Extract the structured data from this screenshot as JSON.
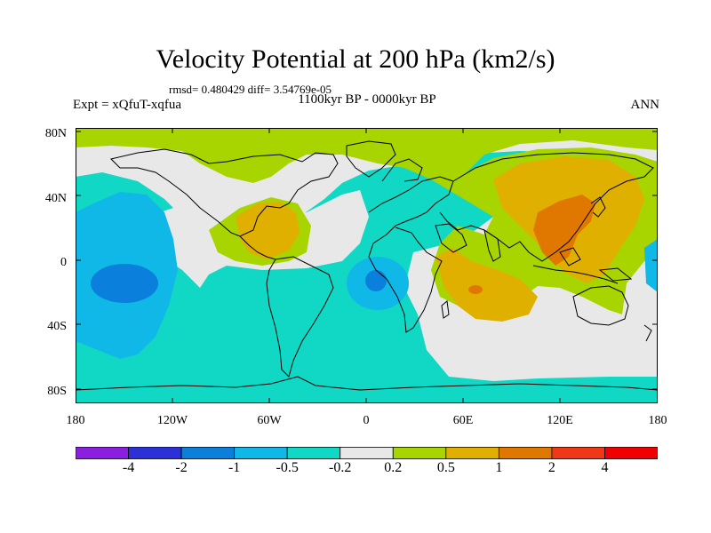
{
  "title": "Velocity Potential at 200 hPa (km2/s)",
  "stats": "rmsd= 0.480429 diff= 3.54769e-05",
  "period": "1100kyr BP - 0000kyr BP",
  "experiment": "Expt = xQfuT-xqfua",
  "season": "ANN",
  "axes": {
    "y_ticks": [
      "80N",
      "40N",
      "0",
      "40S",
      "80S"
    ],
    "x_ticks": [
      "180",
      "120W",
      "60W",
      "0",
      "60E",
      "120E",
      "180"
    ]
  },
  "colorbar": {
    "labels": [
      "-4",
      "-2",
      "-1",
      "-0.5",
      "-0.2",
      "0.2",
      "0.5",
      "1",
      "2",
      "4"
    ],
    "colors": [
      "#8a1fe0",
      "#2b30d8",
      "#0a80dc",
      "#10b8e8",
      "#10d8c4",
      "#e8e8e8",
      "#a8d400",
      "#e0b000",
      "#e07800",
      "#f03818",
      "#f00000"
    ]
  },
  "field_colors": {
    "strong_neg": "#0a80dc",
    "neg": "#10b8e8",
    "weak_neg": "#10d8c4",
    "neutral": "#e8e8e8",
    "weak_pos": "#a8d400",
    "pos": "#e0b000",
    "strong_pos": "#e07800"
  }
}
